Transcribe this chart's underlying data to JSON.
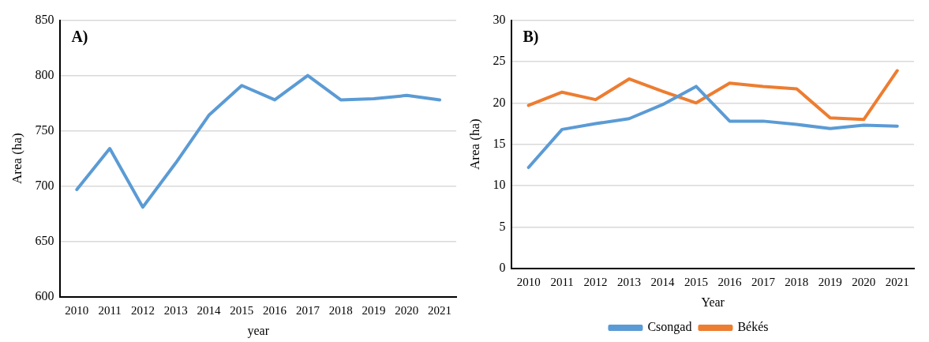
{
  "chart_data": [
    {
      "type": "line",
      "xlabel": "year",
      "ylabel": "Area (ha)",
      "annotations": [
        "A)"
      ],
      "categories": [
        "2010",
        "2011",
        "2012",
        "2013",
        "2014",
        "2015",
        "2016",
        "2017",
        "2018",
        "2019",
        "2020",
        "2021"
      ],
      "series": [
        {
          "color": "#5b9bd5",
          "values": [
            697,
            734,
            681,
            721,
            764,
            791,
            778,
            800,
            778,
            779,
            782,
            778
          ]
        }
      ],
      "ylim": [
        600,
        850
      ],
      "yticks": [
        600,
        650,
        700,
        750,
        800,
        850
      ],
      "grid": "y",
      "legend": false,
      "marker": "none"
    },
    {
      "type": "line",
      "xlabel": "Year",
      "ylabel": "Area (ha)",
      "annotations": [
        "B)"
      ],
      "categories": [
        "2010",
        "2011",
        "2012",
        "2013",
        "2014",
        "2015",
        "2016",
        "2017",
        "2018",
        "2019",
        "2020",
        "2021"
      ],
      "series": [
        {
          "name": "Csongad",
          "color": "#5b9bd5",
          "values": [
            12.2,
            16.8,
            17.5,
            18.1,
            19.8,
            22,
            17.8,
            17.8,
            17.4,
            16.9,
            17.3,
            17.2
          ]
        },
        {
          "name": "Békés",
          "color": "#ed7d31",
          "values": [
            19.7,
            21.3,
            20.4,
            22.9,
            21.4,
            20,
            22.4,
            22,
            21.7,
            18.2,
            18,
            23.9
          ]
        }
      ],
      "ylim": [
        0,
        30
      ],
      "yticks": [
        0,
        5,
        10,
        15,
        20,
        25,
        30
      ],
      "grid": "y",
      "legend": "bottom",
      "marker": "none"
    }
  ]
}
